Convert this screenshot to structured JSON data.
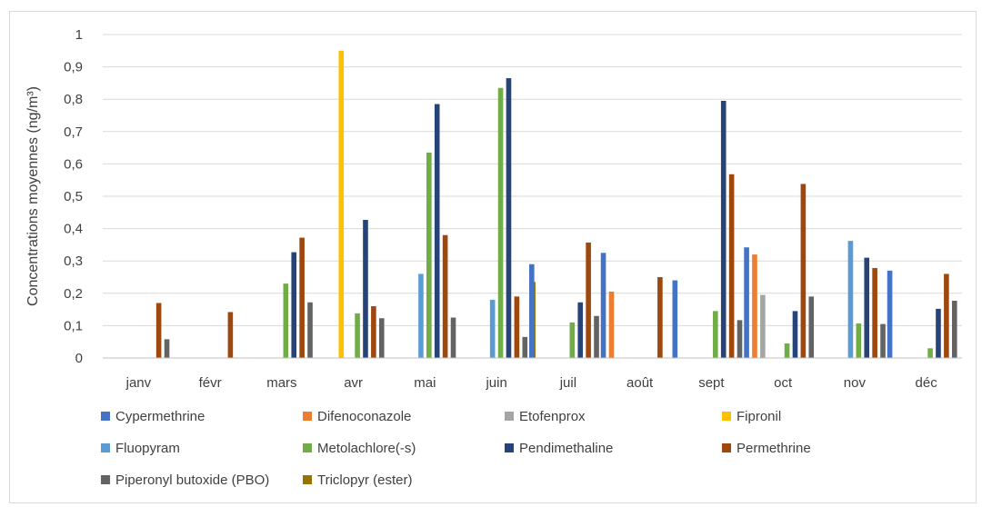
{
  "chart_data": {
    "type": "bar",
    "title": "",
    "xlabel": "",
    "ylabel": "Concentrations moyennes (ng/m³)",
    "ylim": [
      0,
      1
    ],
    "yticks": [
      0,
      0.1,
      0.2,
      0.3,
      0.4,
      0.5,
      0.6,
      0.7,
      0.8,
      0.9,
      1
    ],
    "ytick_labels": [
      "0",
      "0,1",
      "0,2",
      "0,3",
      "0,4",
      "0,5",
      "0,6",
      "0,7",
      "0,8",
      "0,9",
      "1"
    ],
    "grid": true,
    "legend_position": "bottom",
    "categories": [
      "janv",
      "févr",
      "mars",
      "avr",
      "mai",
      "juin",
      "juil",
      "août",
      "sept",
      "oct",
      "nov",
      "déc"
    ],
    "series": [
      {
        "name": "Cypermethrine",
        "color": "#4472C4",
        "values": [
          0,
          0,
          0,
          0,
          0,
          0,
          0.29,
          0.325,
          0.24,
          0.342,
          0,
          0.27
        ]
      },
      {
        "name": "Difenoconazole",
        "color": "#ED7D31",
        "values": [
          0,
          0,
          0,
          0,
          0,
          0,
          0,
          0.205,
          0,
          0.32,
          0,
          0
        ]
      },
      {
        "name": "Etofenprox",
        "color": "#A5A5A5",
        "values": [
          0,
          0,
          0,
          0,
          0,
          0,
          0,
          0,
          0,
          0.195,
          0,
          0
        ]
      },
      {
        "name": "Fipronil",
        "color": "#FFC000",
        "values": [
          0,
          0,
          0,
          0.95,
          0,
          0,
          0,
          0,
          0,
          0,
          0,
          0
        ]
      },
      {
        "name": "Fluopyram",
        "color": "#5B9BD5",
        "values": [
          0,
          0,
          0,
          0,
          0.26,
          0.18,
          0,
          0,
          0,
          0,
          0.362,
          0
        ]
      },
      {
        "name": "Metolachlore(-s)",
        "color": "#70AD47",
        "values": [
          0,
          0,
          0.23,
          0.138,
          0.635,
          0.835,
          0.11,
          0,
          0.145,
          0.045,
          0.107,
          0.03
        ]
      },
      {
        "name": "Pendimethaline",
        "color": "#264478",
        "values": [
          0,
          0,
          0.327,
          0.427,
          0.785,
          0.865,
          0.172,
          0,
          0.795,
          0.145,
          0.31,
          0.152
        ]
      },
      {
        "name": "Permethrine",
        "color": "#9E480E",
        "values": [
          0.17,
          0.142,
          0.372,
          0.16,
          0.38,
          0.19,
          0.357,
          0.25,
          0.568,
          0.538,
          0.278,
          0.26
        ]
      },
      {
        "name": "Piperonyl butoxide (PBO)",
        "color": "#636363",
        "values": [
          0.058,
          0,
          0.172,
          0.123,
          0.125,
          0.065,
          0.13,
          0,
          0.117,
          0.19,
          0.105,
          0.177
        ]
      },
      {
        "name": "Triclopyr (ester)",
        "color": "#997300",
        "values": [
          0,
          0,
          0,
          0,
          0,
          0.235,
          0,
          0,
          0,
          0,
          0,
          0
        ]
      }
    ]
  }
}
